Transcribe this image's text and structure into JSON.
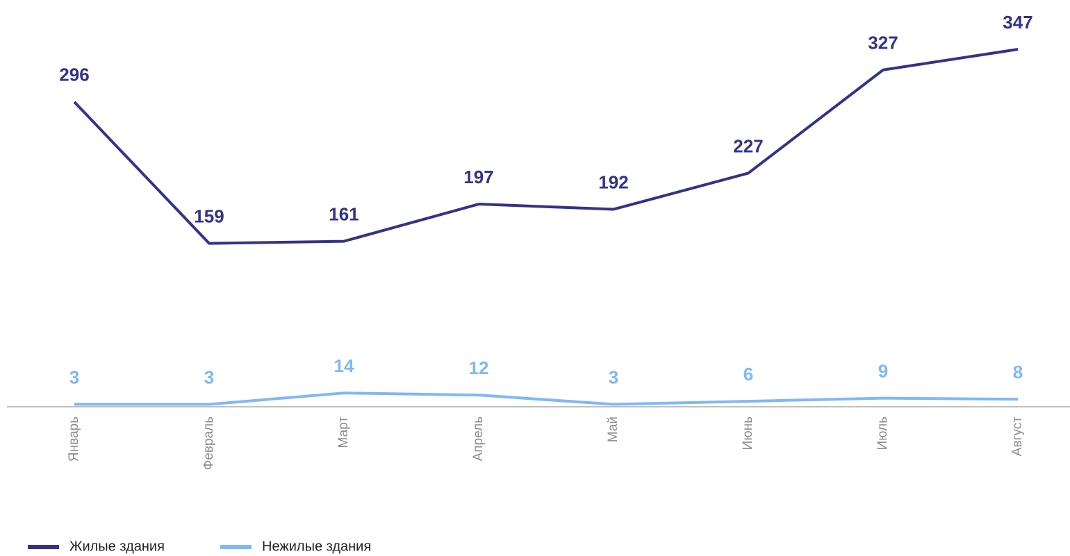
{
  "chart_data": {
    "type": "line",
    "categories": [
      "Январь",
      "Февраль",
      "Март",
      "Апрель",
      "Май",
      "Июнь",
      "Июль",
      "Август"
    ],
    "series": [
      {
        "name": "Жилые здания",
        "color": "#32338a",
        "values": [
          296,
          159,
          161,
          197,
          192,
          227,
          327,
          347
        ]
      },
      {
        "name": "Нежилые здания",
        "color": "#7fb8f5",
        "values": [
          3,
          3,
          14,
          12,
          3,
          6,
          9,
          8
        ]
      }
    ],
    "legend": "bottom-left"
  }
}
